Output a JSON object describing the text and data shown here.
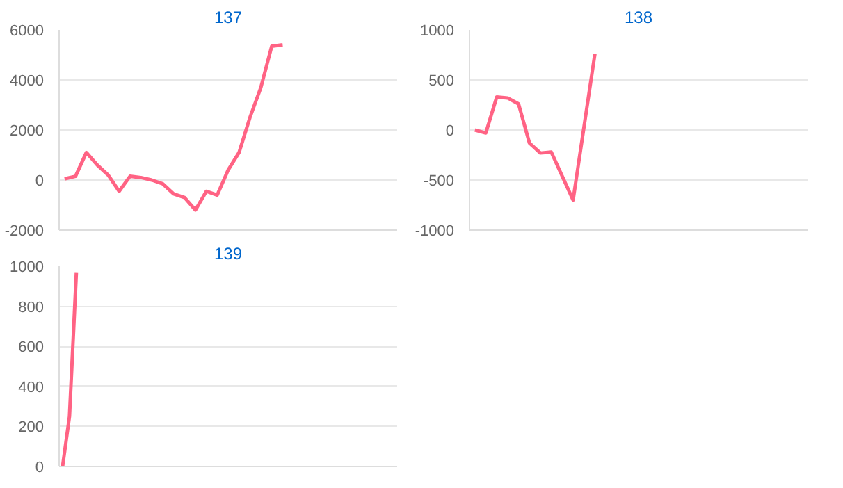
{
  "chart_data": [
    {
      "type": "line",
      "title": "137",
      "categories": [
        null,
        null,
        null,
        null,
        null,
        null,
        null,
        null,
        null,
        null,
        null,
        null,
        null,
        null,
        null,
        null,
        null,
        null,
        null,
        null,
        null,
        null,
        null,
        null,
        null,
        null,
        null,
        null,
        null,
        null,
        null
      ],
      "values": [
        50,
        150,
        1100,
        600,
        200,
        -450,
        150,
        100,
        0,
        -150,
        -550,
        -700,
        -1200,
        -450,
        -600,
        400,
        1100,
        2500,
        3700,
        5350,
        5400,
        null,
        null,
        null,
        null,
        null,
        null,
        null,
        null,
        null,
        null
      ],
      "color": "#ff6384",
      "ylim": [
        -2000,
        6000
      ],
      "yticks": [
        -2000,
        0,
        2000,
        4000,
        6000
      ],
      "grid": "y",
      "tick_labels": "y"
    },
    {
      "type": "line",
      "title": "138",
      "categories": [
        null,
        null,
        null,
        null,
        null,
        null,
        null,
        null,
        null,
        null,
        null,
        null,
        null,
        null,
        null,
        null,
        null,
        null,
        null,
        null,
        null,
        null,
        null,
        null,
        null,
        null,
        null,
        null,
        null,
        null,
        null
      ],
      "values": [
        0,
        -30,
        330,
        320,
        260,
        -130,
        -230,
        -220,
        -460,
        -700,
        30,
        760,
        null,
        null,
        null,
        null,
        null,
        null,
        null,
        null,
        null,
        null,
        null,
        null,
        null,
        null,
        null,
        null,
        null,
        null,
        null
      ],
      "color": "#ff6384",
      "ylim": [
        -1000,
        1000
      ],
      "yticks": [
        -1000,
        -500,
        0,
        500,
        1000
      ],
      "grid": "y",
      "tick_labels": "y"
    },
    {
      "type": "line",
      "title": "139",
      "categories": [
        null,
        null,
        null,
        null,
        null,
        null,
        null,
        null,
        null,
        null,
        null,
        null,
        null,
        null,
        null,
        null,
        null,
        null,
        null,
        null,
        null,
        null,
        null,
        null,
        null,
        null,
        null,
        null,
        null,
        null,
        null,
        null,
        null,
        null,
        null,
        null,
        null,
        null,
        null,
        null,
        null,
        null,
        null,
        null,
        null,
        null,
        null,
        null,
        null
      ],
      "values": [
        0,
        250,
        970,
        null,
        null,
        null,
        null,
        null,
        null,
        null,
        null,
        null,
        null,
        null,
        null,
        null,
        null,
        null,
        null,
        null,
        null,
        null,
        null,
        null,
        null,
        null,
        null,
        null,
        null,
        null,
        null,
        null,
        null,
        null,
        null,
        null,
        null,
        null,
        null,
        null,
        null,
        null,
        null,
        null,
        null,
        null,
        null,
        null,
        null
      ],
      "color": "#ff6384",
      "ylim": [
        0,
        1000
      ],
      "yticks": [
        0,
        200,
        400,
        600,
        800,
        1000
      ],
      "grid": "y",
      "tick_labels": "y"
    }
  ]
}
